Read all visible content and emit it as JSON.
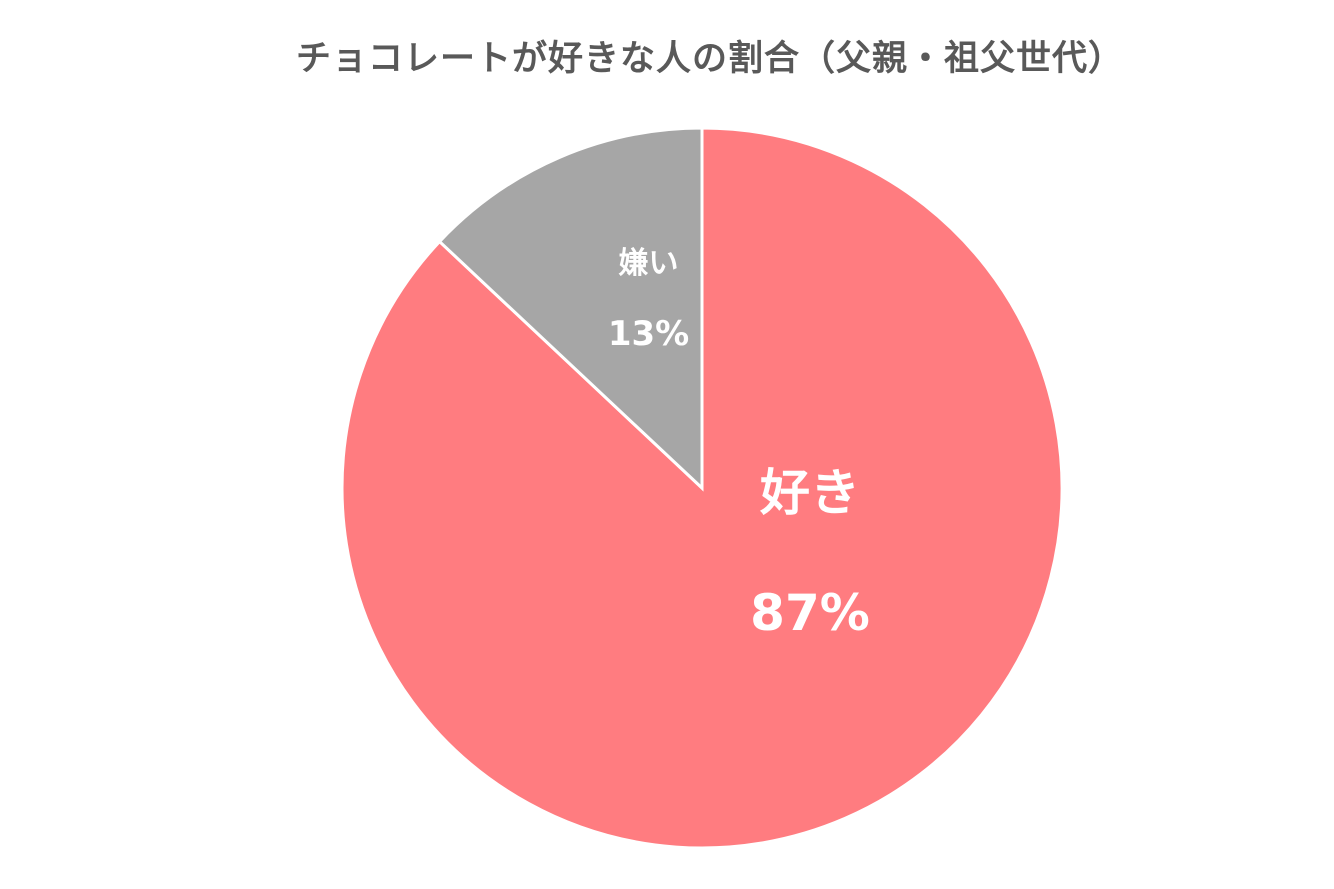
{
  "chart_data": {
    "type": "pie",
    "title": "チョコレートが好きな人の割合（父親・祖父世代）",
    "slices": [
      {
        "label": "好き",
        "value": 87,
        "value_label": "87%",
        "color": "#FF7C80"
      },
      {
        "label": "嫌い",
        "value": 13,
        "value_label": "13%",
        "color": "#A6A6A6"
      }
    ],
    "start_angle": "top, clockwise",
    "legend": "none",
    "label_color": "#FFFFFF",
    "border_color": "#FFFFFF",
    "title_color": "#595959"
  }
}
